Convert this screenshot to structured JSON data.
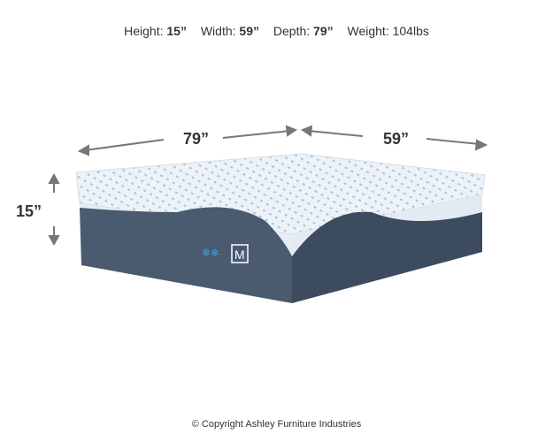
{
  "specs": {
    "height_label": "Height:",
    "height_value": "15”",
    "width_label": "Width:",
    "width_value": "59”",
    "depth_label": "Depth:",
    "depth_value": "79”",
    "weight_label": "Weight:",
    "weight_value": "104lbs"
  },
  "dimensions": {
    "depth": "79”",
    "width": "59”",
    "height": "15”"
  },
  "copyright": "© Copyright Ashley Furniture Industries",
  "colors": {
    "base": "#46566b",
    "top": "#eef2f6",
    "accent": "#3ba3dc"
  }
}
